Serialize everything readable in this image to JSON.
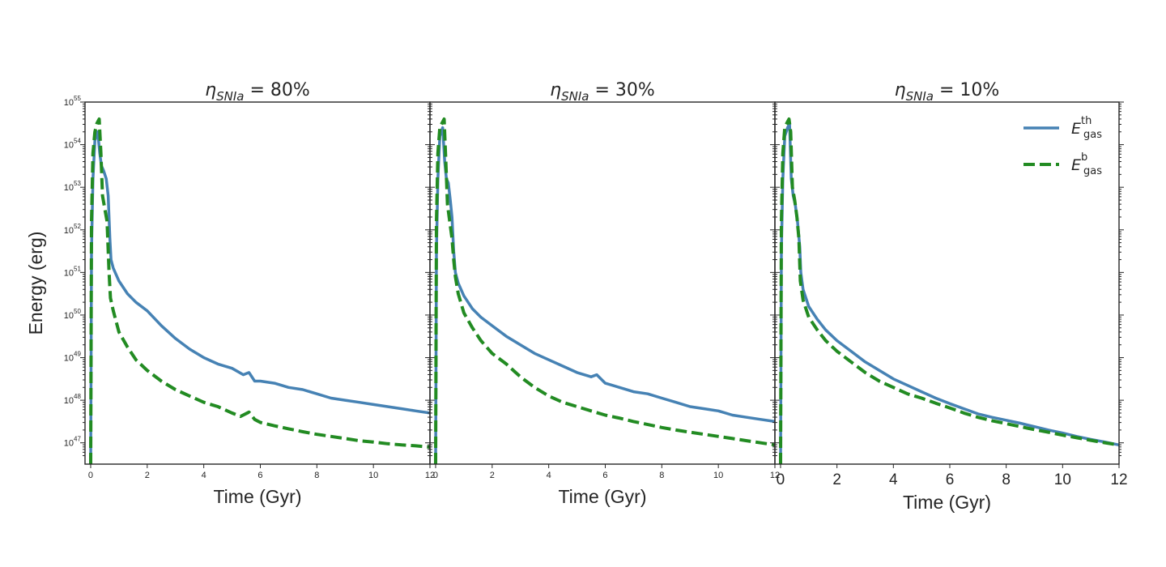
{
  "chart_data": [
    {
      "type": "line",
      "title_symbol": "η",
      "title_subscript": "SNIa",
      "title_value": " = 80%",
      "xlabel": "Time (Gyr)",
      "ylabel": "Energy (erg)",
      "xlim": [
        -0.2,
        12
      ],
      "ylim_log10": [
        46.5,
        55
      ],
      "x_ticks": [
        0,
        2,
        4,
        6,
        8,
        10,
        12
      ],
      "x_tick_labels": [
        "0",
        "2",
        "4",
        "6",
        "8",
        "10",
        "12"
      ],
      "y_ticks_log10": [
        47,
        48,
        49,
        50,
        51,
        52,
        53,
        54,
        55
      ],
      "y_tick_base": "10",
      "y_tick_exponents": [
        "47",
        "48",
        "49",
        "50",
        "51",
        "52",
        "53",
        "54",
        "55"
      ],
      "series": [
        {
          "name": "E_gas^th",
          "color": "#4682b4",
          "style": "solid",
          "x": [
            0.0,
            0.03,
            0.08,
            0.15,
            0.25,
            0.32,
            0.38,
            0.45,
            0.55,
            0.62,
            0.68,
            0.72,
            0.8,
            1.0,
            1.3,
            1.6,
            2.0,
            2.5,
            3.0,
            3.5,
            4.0,
            4.5,
            5.0,
            5.4,
            5.6,
            5.8,
            6.0,
            6.5,
            7.0,
            7.5,
            8.0,
            8.5,
            9.0,
            9.5,
            10.0,
            10.5,
            11.0,
            11.5,
            12.0
          ],
          "y_log10": [
            46.5,
            51.5,
            53.2,
            54.1,
            54.3,
            53.8,
            53.5,
            53.4,
            53.2,
            52.8,
            51.8,
            51.3,
            51.1,
            50.8,
            50.5,
            50.3,
            50.1,
            49.75,
            49.45,
            49.2,
            49.0,
            48.85,
            48.75,
            48.6,
            48.65,
            48.45,
            48.45,
            48.4,
            48.3,
            48.25,
            48.15,
            48.05,
            48.0,
            47.95,
            47.9,
            47.85,
            47.8,
            47.75,
            47.7
          ]
        },
        {
          "name": "E_gas^b",
          "color": "#228b22",
          "style": "dashed",
          "x": [
            0.0,
            0.03,
            0.08,
            0.15,
            0.22,
            0.3,
            0.36,
            0.42,
            0.5,
            0.58,
            0.65,
            0.7,
            0.8,
            1.0,
            1.3,
            1.6,
            2.0,
            2.5,
            3.0,
            3.5,
            4.0,
            4.5,
            5.0,
            5.3,
            5.6,
            5.8,
            6.0,
            6.5,
            7.0,
            7.5,
            8.0,
            8.5,
            9.0,
            9.5,
            10.0,
            10.5,
            11.0,
            11.5,
            12.0
          ],
          "y_log10": [
            46.5,
            52.2,
            53.8,
            54.3,
            54.5,
            54.6,
            53.8,
            52.8,
            52.5,
            52.2,
            51.0,
            50.4,
            50.1,
            49.6,
            49.25,
            48.95,
            48.7,
            48.45,
            48.25,
            48.1,
            47.95,
            47.85,
            47.7,
            47.62,
            47.72,
            47.55,
            47.48,
            47.4,
            47.33,
            47.26,
            47.2,
            47.15,
            47.1,
            47.05,
            47.02,
            46.98,
            46.95,
            46.93,
            46.9
          ]
        }
      ]
    },
    {
      "type": "line",
      "title_symbol": "η",
      "title_subscript": "SNIa",
      "title_value": " = 30%",
      "xlabel": "Time (Gyr)",
      "ylabel": "",
      "xlim": [
        -0.2,
        12
      ],
      "ylim_log10": [
        46.5,
        55
      ],
      "x_ticks": [
        0,
        2,
        4,
        6,
        8,
        10,
        12
      ],
      "x_tick_labels": [
        "0",
        "2",
        "4",
        "6",
        "8",
        "10",
        "12"
      ],
      "series": [
        {
          "name": "E_gas^th",
          "color": "#4682b4",
          "style": "solid",
          "x": [
            0.0,
            0.03,
            0.08,
            0.15,
            0.25,
            0.32,
            0.38,
            0.45,
            0.52,
            0.58,
            0.64,
            0.7,
            0.8,
            1.0,
            1.3,
            1.6,
            2.0,
            2.5,
            3.0,
            3.5,
            4.0,
            4.5,
            5.0,
            5.5,
            5.7,
            6.0,
            6.5,
            7.0,
            7.5,
            8.0,
            8.5,
            9.0,
            9.5,
            10.0,
            10.5,
            11.0,
            11.5,
            12.0
          ],
          "y_log10": [
            46.5,
            51.5,
            53.2,
            54.2,
            54.4,
            53.6,
            53.2,
            53.1,
            52.7,
            52.3,
            51.5,
            51.0,
            50.75,
            50.45,
            50.15,
            49.95,
            49.75,
            49.5,
            49.3,
            49.1,
            48.95,
            48.8,
            48.65,
            48.55,
            48.6,
            48.4,
            48.3,
            48.2,
            48.15,
            48.05,
            47.95,
            47.85,
            47.8,
            47.75,
            47.65,
            47.6,
            47.55,
            47.5
          ]
        },
        {
          "name": "E_gas^b",
          "color": "#228b22",
          "style": "dashed",
          "x": [
            0.0,
            0.03,
            0.08,
            0.15,
            0.22,
            0.3,
            0.36,
            0.42,
            0.5,
            0.58,
            0.64,
            0.7,
            0.8,
            1.0,
            1.3,
            1.6,
            2.0,
            2.5,
            3.0,
            3.5,
            4.0,
            4.5,
            5.0,
            5.5,
            6.0,
            6.5,
            7.0,
            7.5,
            8.0,
            8.5,
            9.0,
            9.5,
            10.0,
            10.5,
            11.0,
            11.5,
            12.0
          ],
          "y_log10": [
            46.5,
            52.2,
            53.8,
            54.4,
            54.5,
            54.6,
            53.6,
            52.6,
            52.2,
            51.8,
            51.3,
            50.9,
            50.5,
            50.05,
            49.7,
            49.4,
            49.1,
            48.85,
            48.55,
            48.3,
            48.1,
            47.95,
            47.85,
            47.75,
            47.65,
            47.58,
            47.5,
            47.43,
            47.36,
            47.3,
            47.25,
            47.2,
            47.15,
            47.1,
            47.05,
            47.0,
            46.95
          ]
        }
      ]
    },
    {
      "type": "line",
      "title_symbol": "η",
      "title_subscript": "SNIa",
      "title_value": " = 10%",
      "xlabel": "Time (Gyr)",
      "ylabel": "",
      "xlim": [
        -0.2,
        12
      ],
      "ylim_log10": [
        46.5,
        55
      ],
      "x_ticks": [
        0,
        2,
        4,
        6,
        8,
        10,
        12
      ],
      "x_tick_labels": [
        "0",
        "2",
        "4",
        "6",
        "8",
        "10",
        "12"
      ],
      "legend_position": "top-right",
      "legend": [
        {
          "base": "E",
          "sup": "th",
          "sub": "gas"
        },
        {
          "base": "E",
          "sup": "b",
          "sub": "gas"
        }
      ],
      "series": [
        {
          "name": "E_gas^th",
          "color": "#4682b4",
          "style": "solid",
          "x": [
            0.0,
            0.03,
            0.08,
            0.15,
            0.25,
            0.32,
            0.38,
            0.45,
            0.52,
            0.6,
            0.68,
            0.72,
            0.8,
            1.0,
            1.3,
            1.6,
            2.0,
            2.5,
            3.0,
            3.5,
            4.0,
            4.5,
            5.0,
            5.5,
            6.0,
            6.5,
            7.0,
            7.5,
            8.0,
            8.5,
            9.0,
            9.5,
            10.0,
            10.5,
            11.0,
            11.5,
            12.0
          ],
          "y_log10": [
            46.5,
            51.5,
            53.2,
            54.2,
            54.4,
            54.5,
            53.2,
            52.8,
            52.6,
            52.2,
            51.6,
            51.0,
            50.6,
            50.2,
            49.9,
            49.65,
            49.4,
            49.15,
            48.9,
            48.7,
            48.5,
            48.35,
            48.2,
            48.05,
            47.92,
            47.8,
            47.68,
            47.6,
            47.53,
            47.46,
            47.38,
            47.3,
            47.23,
            47.15,
            47.08,
            47.02,
            46.95
          ]
        },
        {
          "name": "E_gas^b",
          "color": "#228b22",
          "style": "dashed",
          "x": [
            0.0,
            0.03,
            0.08,
            0.15,
            0.22,
            0.3,
            0.36,
            0.42,
            0.5,
            0.58,
            0.65,
            0.7,
            0.8,
            1.0,
            1.3,
            1.6,
            2.0,
            2.5,
            3.0,
            3.5,
            4.0,
            4.5,
            5.0,
            5.5,
            6.0,
            6.5,
            7.0,
            7.5,
            8.0,
            8.5,
            9.0,
            9.5,
            10.0,
            10.5,
            11.0,
            11.5,
            12.0
          ],
          "y_log10": [
            46.5,
            52.2,
            53.8,
            54.4,
            54.5,
            54.6,
            54.3,
            53.0,
            52.7,
            52.3,
            51.8,
            50.8,
            50.35,
            49.95,
            49.65,
            49.4,
            49.15,
            48.9,
            48.65,
            48.45,
            48.3,
            48.15,
            48.05,
            47.93,
            47.82,
            47.7,
            47.6,
            47.52,
            47.45,
            47.38,
            47.31,
            47.25,
            47.18,
            47.12,
            47.06,
            47.0,
            46.95
          ]
        }
      ]
    }
  ]
}
